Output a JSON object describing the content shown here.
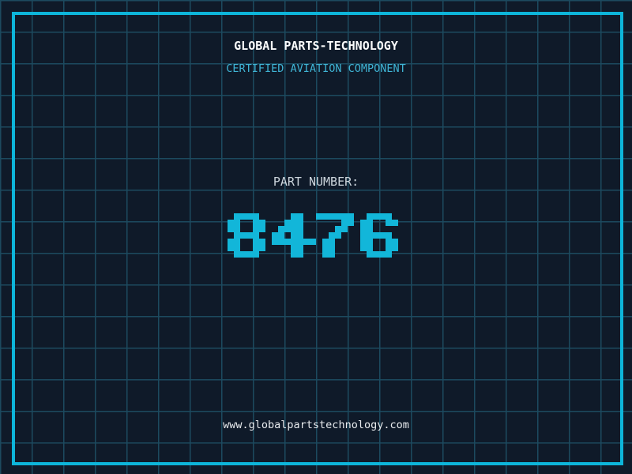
{
  "header": {
    "title": "GLOBAL PARTS-TECHNOLOGY",
    "subtitle": "CERTIFIED AVIATION COMPONENT"
  },
  "part": {
    "label": "PART NUMBER:",
    "number": "8476"
  },
  "footer": {
    "url": "www.globalpartstechnology.com"
  },
  "colors": {
    "background": "#0f1a29",
    "grid_line": "#1c4a5f",
    "frame": "#0db5da",
    "title": "#fafbfc",
    "subtitle": "#3fb5d6",
    "label": "#ccd5dc",
    "digits": "#12b6d9",
    "url": "#e8ebee"
  }
}
